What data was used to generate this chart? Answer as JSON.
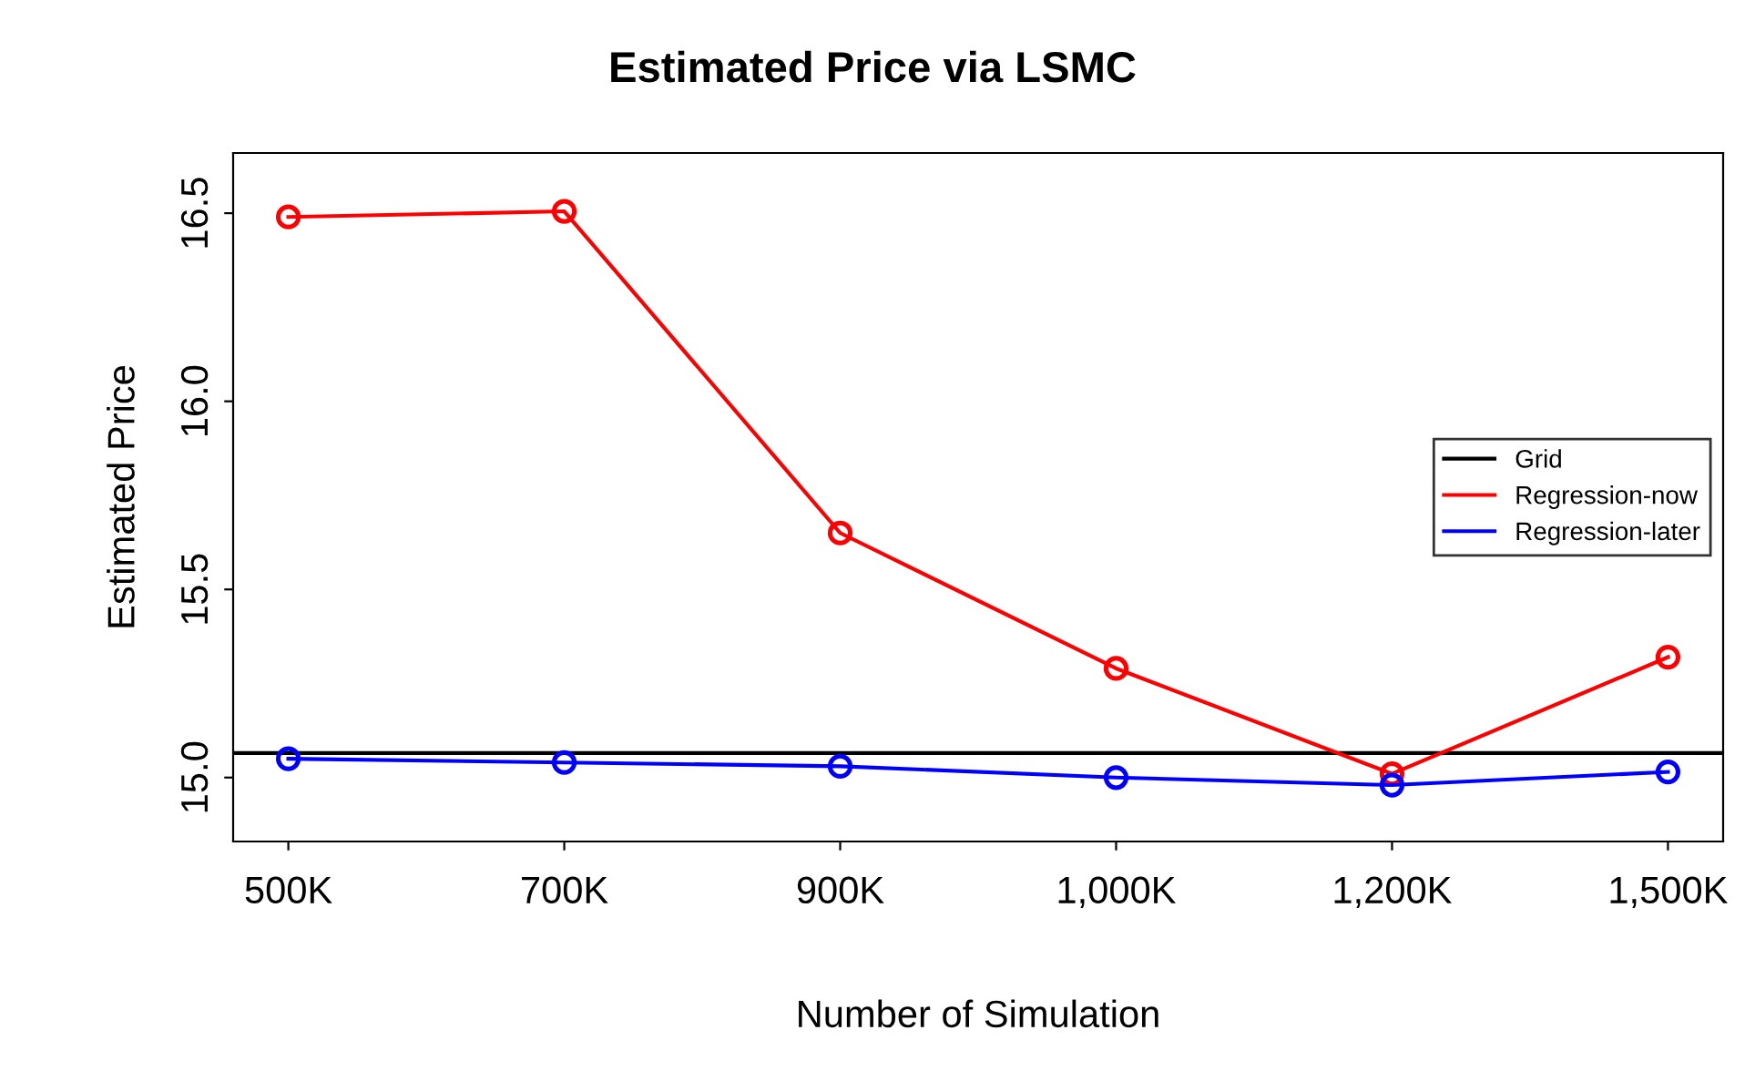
{
  "chart_data": {
    "type": "line",
    "title": "Estimated Price via LSMC",
    "xlabel": "Number of Simulation",
    "ylabel": "Estimated Price",
    "categories": [
      "500K",
      "700K",
      "900K",
      "1,000K",
      "1,200K",
      "1,500K"
    ],
    "series": [
      {
        "name": "Regression-now",
        "color": "#ff0000",
        "values": [
          16.49,
          16.505,
          15.65,
          15.29,
          15.01,
          15.32
        ]
      },
      {
        "name": "Regression-later",
        "color": "#0000ff",
        "values": [
          15.05,
          15.04,
          15.03,
          15.0,
          14.98,
          15.015
        ]
      }
    ],
    "ref_lines": [
      {
        "axis": "y",
        "value": 15.065,
        "label": "Grid",
        "color": "#000000",
        "line_style": "solid"
      }
    ],
    "ylim": [
      14.83,
      16.66
    ],
    "yticks": [
      {
        "value": 15.0,
        "label": "15.0"
      },
      {
        "value": 15.5,
        "label": "15.5"
      },
      {
        "value": 16.0,
        "label": "16.0"
      },
      {
        "value": 16.5,
        "label": "16.5"
      }
    ],
    "marker": "circle",
    "line_style": "solid",
    "legend": "right",
    "grid": false
  }
}
